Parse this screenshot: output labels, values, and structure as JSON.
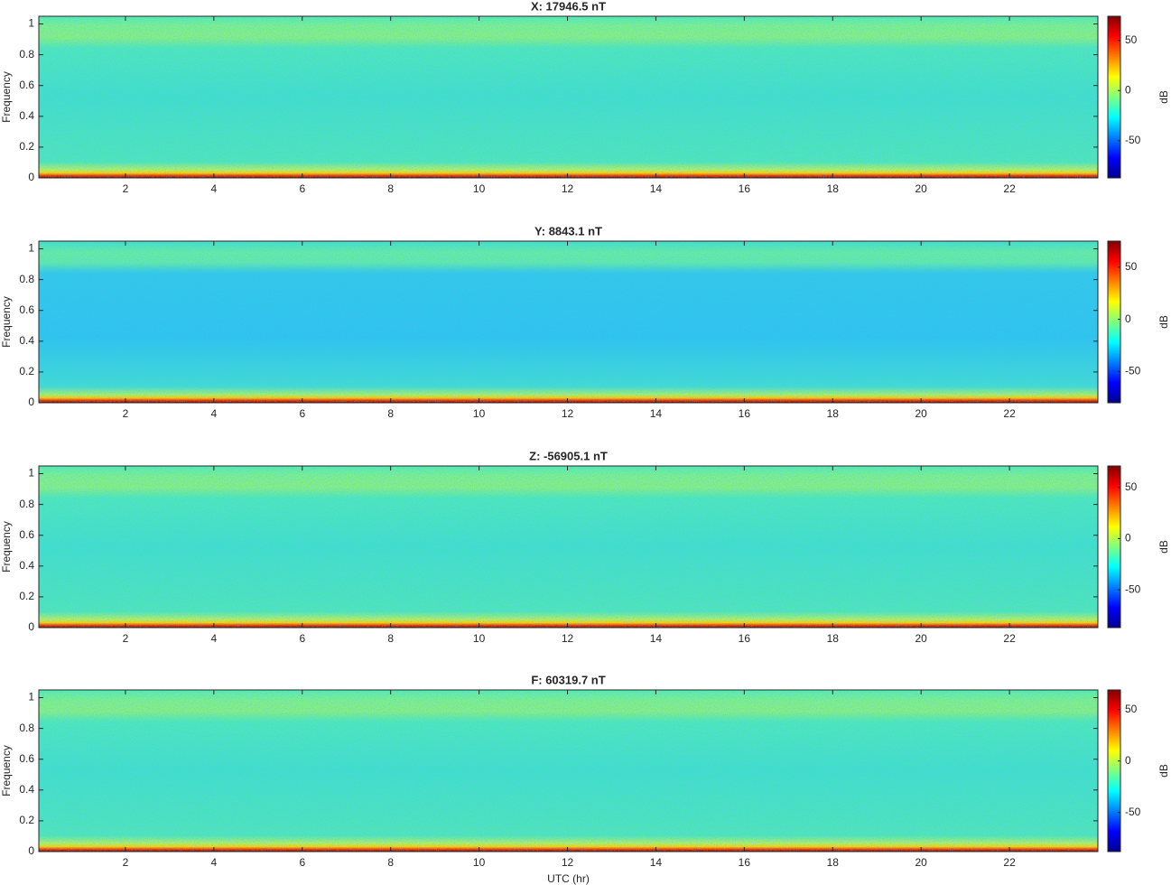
{
  "chart_data": [
    {
      "type": "heatmap",
      "title": "X: 17946.5 nT",
      "ylabel": "Frequency",
      "xlim": [
        0.04,
        24
      ],
      "xticks": [
        2,
        4,
        6,
        8,
        10,
        12,
        14,
        16,
        18,
        20,
        22
      ],
      "ylim": [
        0,
        1.05
      ],
      "yticks": [
        0,
        0.2,
        0.4,
        0.6,
        0.8,
        1
      ],
      "colorbar": {
        "label": "dB",
        "lim": [
          -87,
          74
        ],
        "ticks": [
          -50,
          0,
          50
        ]
      }
    },
    {
      "type": "heatmap",
      "title": "Y: 8843.1 nT",
      "ylabel": "Frequency",
      "xlim": [
        0.04,
        24
      ],
      "xticks": [
        2,
        4,
        6,
        8,
        10,
        12,
        14,
        16,
        18,
        20,
        22
      ],
      "ylim": [
        0,
        1.05
      ],
      "yticks": [
        0,
        0.2,
        0.4,
        0.6,
        0.8,
        1
      ],
      "colorbar": {
        "label": "dB",
        "lim": [
          -80,
          75
        ],
        "ticks": [
          -50,
          0,
          50
        ]
      }
    },
    {
      "type": "heatmap",
      "title": "Z: -56905.1 nT",
      "ylabel": "Frequency",
      "xlim": [
        0.04,
        24
      ],
      "xticks": [
        2,
        4,
        6,
        8,
        10,
        12,
        14,
        16,
        18,
        20,
        22
      ],
      "ylim": [
        0,
        1.05
      ],
      "yticks": [
        0,
        0.2,
        0.4,
        0.6,
        0.8,
        1
      ],
      "colorbar": {
        "label": "dB",
        "lim": [
          -87,
          71
        ],
        "ticks": [
          -50,
          0,
          50
        ]
      }
    },
    {
      "type": "heatmap",
      "title": "F: 60319.7 nT",
      "ylabel": "Frequency",
      "xlabel": "UTC (hr)",
      "xlim": [
        0.04,
        24
      ],
      "xticks": [
        2,
        4,
        6,
        8,
        10,
        12,
        14,
        16,
        18,
        20,
        22
      ],
      "ylim": [
        0,
        1.05
      ],
      "yticks": [
        0,
        0.2,
        0.4,
        0.6,
        0.8,
        1
      ],
      "colorbar": {
        "label": "dB",
        "lim": [
          -88,
          69
        ],
        "ticks": [
          -50,
          0,
          50
        ]
      }
    }
  ]
}
